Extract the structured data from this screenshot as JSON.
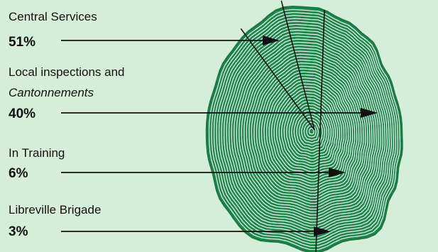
{
  "chart_data": {
    "type": "pie",
    "title": "",
    "colors": {
      "background": "#d5eed9",
      "trunk_fill": "#1e8a4a",
      "ring_stroke": "#ffffff",
      "outline": "#1a7a42",
      "text": "#111111"
    },
    "slices": [
      {
        "label": "Central Services",
        "label_line2": "",
        "value": 51,
        "value_label": "51%"
      },
      {
        "label": "Local inspections and",
        "label_line2": "Cantonnements",
        "value": 40,
        "value_label": "40%"
      },
      {
        "label": "In Training",
        "label_line2": "",
        "value": 6,
        "value_label": "6%"
      },
      {
        "label": "Libreville Brigade",
        "label_line2": "",
        "value": 3,
        "value_label": "3%"
      }
    ]
  }
}
